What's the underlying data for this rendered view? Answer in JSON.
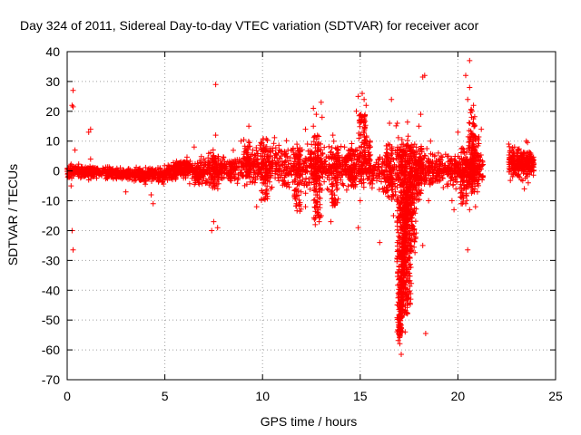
{
  "chart_data": {
    "type": "scatter",
    "title": "Day 324 of 2011, Sidereal Day-to-day VTEC variation (SDTVAR) for receiver acor",
    "xlabel": "GPS time / hours",
    "ylabel": "SDTVAR / TECUs",
    "xlim": [
      0,
      25
    ],
    "ylim": [
      -70,
      40
    ],
    "xticks": [
      0,
      5,
      10,
      15,
      20,
      25
    ],
    "yticks": [
      -70,
      -60,
      -50,
      -40,
      -30,
      -20,
      -10,
      0,
      10,
      20,
      30,
      40
    ],
    "grid": true,
    "marker": "+",
    "colors": {
      "series": "#ff0000",
      "grid": "#a0a0a0",
      "axis": "#000000"
    },
    "series": [
      {
        "name": "SDTVAR",
        "outliers": [
          [
            0.3,
            27
          ],
          [
            0.3,
            21.5
          ],
          [
            0.25,
            22
          ],
          [
            0.25,
            -20
          ],
          [
            0.3,
            -26.5
          ],
          [
            0.4,
            7
          ],
          [
            0.2,
            -5
          ],
          [
            1.2,
            14
          ],
          [
            1.1,
            13
          ],
          [
            1.2,
            4
          ],
          [
            1.1,
            -3
          ],
          [
            3,
            -7
          ],
          [
            4.3,
            -8
          ],
          [
            4.4,
            -11
          ],
          [
            7.6,
            29
          ],
          [
            7.6,
            12
          ],
          [
            7.5,
            -17
          ],
          [
            7.7,
            -19
          ],
          [
            7.4,
            -20
          ],
          [
            6.5,
            8
          ],
          [
            7,
            4
          ],
          [
            8.9,
            10
          ],
          [
            9.5,
            7
          ],
          [
            9.7,
            -12
          ],
          [
            9.3,
            15
          ],
          [
            12.2,
            14
          ],
          [
            12.3,
            9
          ],
          [
            12.5,
            6
          ],
          [
            12.6,
            15
          ],
          [
            12.2,
            -12
          ],
          [
            12.9,
            -17
          ],
          [
            12.7,
            -18
          ],
          [
            13,
            -15
          ],
          [
            12.6,
            21
          ],
          [
            13,
            23
          ],
          [
            13.05,
            18
          ],
          [
            12.75,
            19
          ],
          [
            13.6,
            12
          ],
          [
            14.2,
            8
          ],
          [
            14.5,
            5
          ],
          [
            13.5,
            -17
          ],
          [
            14.9,
            25
          ],
          [
            15.1,
            26
          ],
          [
            15.2,
            24
          ],
          [
            15.3,
            22
          ],
          [
            14.8,
            20
          ],
          [
            15.5,
            10
          ],
          [
            15.0,
            -10
          ],
          [
            14.9,
            -19
          ],
          [
            16.0,
            -24
          ],
          [
            16.5,
            16
          ],
          [
            16.6,
            24
          ],
          [
            16.7,
            -15
          ],
          [
            16.9,
            -24
          ],
          [
            17.0,
            -38
          ],
          [
            17.1,
            -61.5
          ],
          [
            17.3,
            -54
          ],
          [
            18.2,
            31.5
          ],
          [
            18.3,
            32
          ],
          [
            18.35,
            -54.5
          ],
          [
            18.1,
            19
          ],
          [
            18.0,
            15
          ],
          [
            18.5,
            -10
          ],
          [
            18.2,
            -25
          ],
          [
            18.6,
            10
          ],
          [
            19.0,
            6
          ],
          [
            19.5,
            3
          ],
          [
            19.7,
            -10
          ],
          [
            19.8,
            -13
          ],
          [
            20.0,
            13
          ],
          [
            19.9,
            -6
          ],
          [
            20.4,
            32
          ],
          [
            20.6,
            37
          ],
          [
            20.6,
            28
          ],
          [
            20.5,
            24
          ],
          [
            20.8,
            22
          ],
          [
            20.7,
            18
          ],
          [
            20.5,
            -26.5
          ],
          [
            20.4,
            -11
          ],
          [
            20.6,
            -13
          ],
          [
            20.9,
            -12
          ],
          [
            21.0,
            -7
          ],
          [
            21.2,
            14
          ],
          [
            20.9,
            6
          ],
          [
            21.1,
            5
          ],
          [
            22.6,
            9
          ],
          [
            22.9,
            8
          ],
          [
            23.1,
            7
          ],
          [
            23.4,
            -6
          ],
          [
            23.5,
            10
          ],
          [
            23.7,
            6
          ],
          [
            23.6,
            -4
          ],
          [
            23.8,
            3
          ]
        ]
      }
    ]
  }
}
